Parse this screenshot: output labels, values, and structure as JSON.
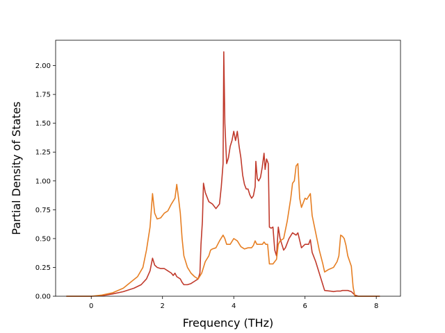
{
  "chart_data": {
    "type": "line",
    "title": "",
    "xlabel": "Frequency (THz)",
    "ylabel": "Partial Density of States",
    "xlim": [
      -1.0,
      8.68
    ],
    "ylim": [
      0.0,
      2.22
    ],
    "xticks": [
      0,
      2,
      4,
      6,
      8
    ],
    "yticks": [
      0.0,
      0.25,
      0.5,
      0.75,
      1.0,
      1.25,
      1.5,
      1.75,
      2.0
    ],
    "xtick_labels": [
      "0",
      "2",
      "4",
      "6",
      "8"
    ],
    "ytick_labels": [
      "0.00",
      "0.25",
      "0.50",
      "0.75",
      "1.00",
      "1.25",
      "1.50",
      "1.75",
      "2.00"
    ],
    "grid": false,
    "legend": "none",
    "series": [
      {
        "color": "#c0392b",
        "points": [
          [
            -0.7,
            0.0
          ],
          [
            0.0,
            0.0
          ],
          [
            0.3,
            0.005
          ],
          [
            0.6,
            0.02
          ],
          [
            0.9,
            0.04
          ],
          [
            1.2,
            0.07
          ],
          [
            1.4,
            0.1
          ],
          [
            1.55,
            0.15
          ],
          [
            1.65,
            0.22
          ],
          [
            1.72,
            0.33
          ],
          [
            1.78,
            0.27
          ],
          [
            1.85,
            0.25
          ],
          [
            1.95,
            0.24
          ],
          [
            2.05,
            0.24
          ],
          [
            2.15,
            0.22
          ],
          [
            2.25,
            0.2
          ],
          [
            2.3,
            0.18
          ],
          [
            2.35,
            0.2
          ],
          [
            2.4,
            0.17
          ],
          [
            2.5,
            0.15
          ],
          [
            2.55,
            0.12
          ],
          [
            2.6,
            0.1
          ],
          [
            2.7,
            0.1
          ],
          [
            2.8,
            0.11
          ],
          [
            2.9,
            0.13
          ],
          [
            3.0,
            0.15
          ],
          [
            3.05,
            0.2
          ],
          [
            3.08,
            0.45
          ],
          [
            3.12,
            0.65
          ],
          [
            3.15,
            0.98
          ],
          [
            3.2,
            0.9
          ],
          [
            3.3,
            0.82
          ],
          [
            3.4,
            0.8
          ],
          [
            3.5,
            0.76
          ],
          [
            3.6,
            0.8
          ],
          [
            3.65,
            0.95
          ],
          [
            3.7,
            1.15
          ],
          [
            3.72,
            2.12
          ],
          [
            3.75,
            1.5
          ],
          [
            3.8,
            1.15
          ],
          [
            3.85,
            1.2
          ],
          [
            3.9,
            1.3
          ],
          [
            3.95,
            1.35
          ],
          [
            4.0,
            1.43
          ],
          [
            4.05,
            1.35
          ],
          [
            4.1,
            1.43
          ],
          [
            4.15,
            1.3
          ],
          [
            4.2,
            1.2
          ],
          [
            4.25,
            1.05
          ],
          [
            4.3,
            0.97
          ],
          [
            4.35,
            0.93
          ],
          [
            4.4,
            0.93
          ],
          [
            4.45,
            0.88
          ],
          [
            4.5,
            0.85
          ],
          [
            4.55,
            0.87
          ],
          [
            4.6,
            0.95
          ],
          [
            4.62,
            1.17
          ],
          [
            4.66,
            1.02
          ],
          [
            4.7,
            1.0
          ],
          [
            4.75,
            1.03
          ],
          [
            4.8,
            1.12
          ],
          [
            4.85,
            1.24
          ],
          [
            4.88,
            1.1
          ],
          [
            4.92,
            1.19
          ],
          [
            4.97,
            1.15
          ],
          [
            5.0,
            0.6
          ],
          [
            5.05,
            0.59
          ],
          [
            5.1,
            0.6
          ],
          [
            5.15,
            0.4
          ],
          [
            5.2,
            0.35
          ],
          [
            5.25,
            0.6
          ],
          [
            5.3,
            0.5
          ],
          [
            5.35,
            0.45
          ],
          [
            5.4,
            0.4
          ],
          [
            5.45,
            0.42
          ],
          [
            5.55,
            0.5
          ],
          [
            5.65,
            0.55
          ],
          [
            5.75,
            0.53
          ],
          [
            5.8,
            0.55
          ],
          [
            5.9,
            0.42
          ],
          [
            6.0,
            0.45
          ],
          [
            6.1,
            0.45
          ],
          [
            6.15,
            0.49
          ],
          [
            6.2,
            0.38
          ],
          [
            6.3,
            0.3
          ],
          [
            6.4,
            0.2
          ],
          [
            6.5,
            0.1
          ],
          [
            6.55,
            0.05
          ],
          [
            6.7,
            0.045
          ],
          [
            6.8,
            0.04
          ],
          [
            6.9,
            0.045
          ],
          [
            7.0,
            0.045
          ],
          [
            7.05,
            0.05
          ],
          [
            7.1,
            0.05
          ],
          [
            7.2,
            0.05
          ],
          [
            7.3,
            0.04
          ],
          [
            7.4,
            0.01
          ],
          [
            7.5,
            0.0
          ],
          [
            8.1,
            0.0
          ]
        ]
      },
      {
        "color": "#e67e22",
        "points": [
          [
            -0.7,
            0.0
          ],
          [
            0.0,
            0.0
          ],
          [
            0.3,
            0.01
          ],
          [
            0.6,
            0.03
          ],
          [
            0.9,
            0.07
          ],
          [
            1.1,
            0.12
          ],
          [
            1.3,
            0.17
          ],
          [
            1.45,
            0.25
          ],
          [
            1.55,
            0.4
          ],
          [
            1.65,
            0.6
          ],
          [
            1.72,
            0.89
          ],
          [
            1.78,
            0.72
          ],
          [
            1.85,
            0.67
          ],
          [
            1.95,
            0.68
          ],
          [
            2.05,
            0.72
          ],
          [
            2.15,
            0.74
          ],
          [
            2.25,
            0.8
          ],
          [
            2.35,
            0.85
          ],
          [
            2.4,
            0.97
          ],
          [
            2.45,
            0.85
          ],
          [
            2.5,
            0.72
          ],
          [
            2.55,
            0.5
          ],
          [
            2.6,
            0.35
          ],
          [
            2.7,
            0.25
          ],
          [
            2.8,
            0.2
          ],
          [
            2.9,
            0.17
          ],
          [
            3.0,
            0.15
          ],
          [
            3.1,
            0.2
          ],
          [
            3.2,
            0.3
          ],
          [
            3.3,
            0.35
          ],
          [
            3.35,
            0.4
          ],
          [
            3.4,
            0.41
          ],
          [
            3.5,
            0.42
          ],
          [
            3.6,
            0.48
          ],
          [
            3.7,
            0.53
          ],
          [
            3.75,
            0.5
          ],
          [
            3.8,
            0.45
          ],
          [
            3.9,
            0.45
          ],
          [
            4.0,
            0.5
          ],
          [
            4.1,
            0.48
          ],
          [
            4.2,
            0.43
          ],
          [
            4.3,
            0.41
          ],
          [
            4.4,
            0.42
          ],
          [
            4.5,
            0.42
          ],
          [
            4.55,
            0.44
          ],
          [
            4.6,
            0.48
          ],
          [
            4.65,
            0.45
          ],
          [
            4.7,
            0.45
          ],
          [
            4.8,
            0.45
          ],
          [
            4.85,
            0.47
          ],
          [
            4.9,
            0.45
          ],
          [
            4.95,
            0.45
          ],
          [
            5.0,
            0.28
          ],
          [
            5.1,
            0.28
          ],
          [
            5.15,
            0.3
          ],
          [
            5.2,
            0.32
          ],
          [
            5.25,
            0.45
          ],
          [
            5.3,
            0.48
          ],
          [
            5.4,
            0.5
          ],
          [
            5.5,
            0.65
          ],
          [
            5.6,
            0.85
          ],
          [
            5.65,
            0.98
          ],
          [
            5.7,
            1.0
          ],
          [
            5.75,
            1.13
          ],
          [
            5.8,
            1.15
          ],
          [
            5.85,
            0.85
          ],
          [
            5.9,
            0.77
          ],
          [
            6.0,
            0.85
          ],
          [
            6.05,
            0.84
          ],
          [
            6.15,
            0.89
          ],
          [
            6.2,
            0.7
          ],
          [
            6.3,
            0.55
          ],
          [
            6.4,
            0.4
          ],
          [
            6.5,
            0.28
          ],
          [
            6.55,
            0.21
          ],
          [
            6.65,
            0.23
          ],
          [
            6.8,
            0.25
          ],
          [
            6.9,
            0.3
          ],
          [
            6.95,
            0.35
          ],
          [
            7.0,
            0.53
          ],
          [
            7.05,
            0.52
          ],
          [
            7.1,
            0.5
          ],
          [
            7.15,
            0.44
          ],
          [
            7.2,
            0.35
          ],
          [
            7.3,
            0.26
          ],
          [
            7.35,
            0.08
          ],
          [
            7.4,
            0.0
          ],
          [
            8.1,
            0.0
          ]
        ]
      }
    ]
  }
}
